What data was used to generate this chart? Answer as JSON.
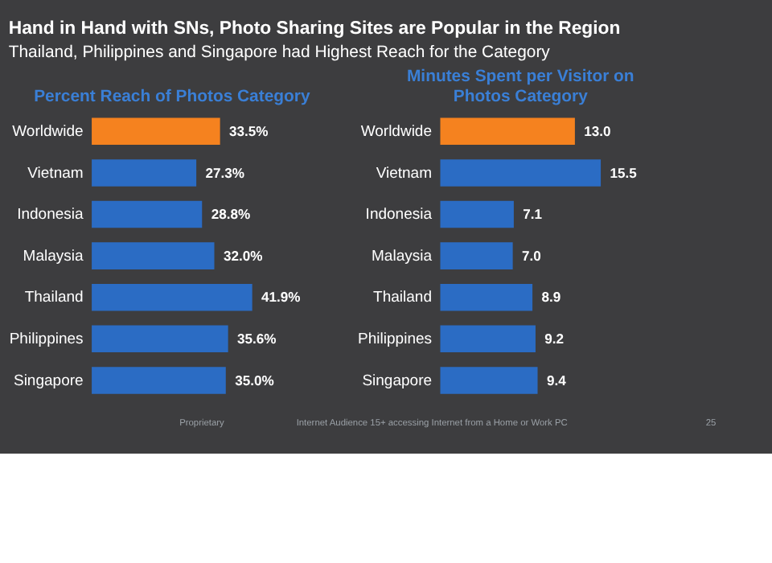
{
  "chart_data": [
    {
      "type": "bar",
      "orientation": "horizontal",
      "title": "Percent Reach of Photos Category",
      "annotations": [
        "Hand in Hand with SNs, Photo Sharing Sites are Popular in the Region",
        "Thailand, Philippines and Singapore had Highest Reach for the Category"
      ],
      "categories": [
        "Worldwide",
        "Vietnam",
        "Indonesia",
        "Malaysia",
        "Thailand",
        "Philippines",
        "Singapore"
      ],
      "values": [
        33.5,
        27.3,
        28.8,
        32.0,
        41.9,
        35.6,
        35.0
      ],
      "value_labels": [
        "33.5%",
        "27.3%",
        "28.8%",
        "32.0%",
        "41.9%",
        "35.6%",
        "35.0%"
      ],
      "colors": [
        "#f5821f",
        "#2b6cc4",
        "#2b6cc4",
        "#2b6cc4",
        "#2b6cc4",
        "#2b6cc4",
        "#2b6cc4"
      ]
    },
    {
      "type": "bar",
      "orientation": "horizontal",
      "title": "Minutes Spent per Visitor on Photos Category",
      "annotations": [
        "Proprietary",
        "Internet Audience 15+ accessing Internet from a Home or Work PC",
        "25"
      ],
      "categories": [
        "Worldwide",
        "Vietnam",
        "Indonesia",
        "Malaysia",
        "Thailand",
        "Philippines",
        "Singapore"
      ],
      "values": [
        13.0,
        15.5,
        7.1,
        7.0,
        8.9,
        9.2,
        9.4
      ],
      "value_labels": [
        "13.0",
        "15.5",
        "7.1",
        "7.0",
        "8.9",
        "9.2",
        "9.4"
      ],
      "colors": [
        "#f5821f",
        "#2b6cc4",
        "#2b6cc4",
        "#2b6cc4",
        "#2b6cc4",
        "#2b6cc4",
        "#2b6cc4"
      ]
    }
  ]
}
